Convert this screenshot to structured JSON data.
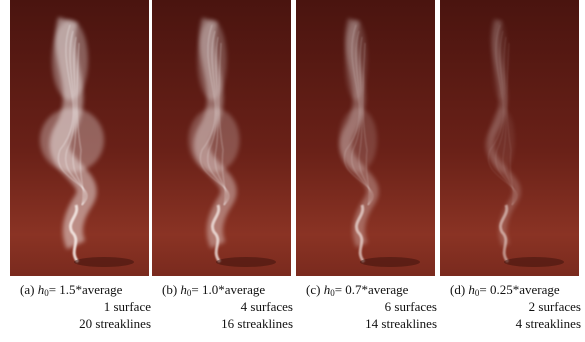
{
  "panels": [
    {
      "tag": "(a)",
      "symbol": "h",
      "subscript": "0",
      "setting": "= 1.5*average",
      "lines": [
        "1 surface",
        "20 streaklines"
      ]
    },
    {
      "tag": "(b)",
      "symbol": "h",
      "subscript": "0",
      "setting": "= 1.0*average",
      "lines": [
        "4 surfaces",
        "16 streaklines"
      ]
    },
    {
      "tag": "(c)",
      "symbol": "h",
      "subscript": "0",
      "setting": "= 0.7*average",
      "lines": [
        "6 surfaces",
        "14 streaklines"
      ]
    },
    {
      "tag": "(d)",
      "symbol": "h",
      "subscript": "0",
      "setting": "= 0.25*average",
      "lines": [
        "2 surfaces",
        "4 streaklines"
      ]
    }
  ]
}
